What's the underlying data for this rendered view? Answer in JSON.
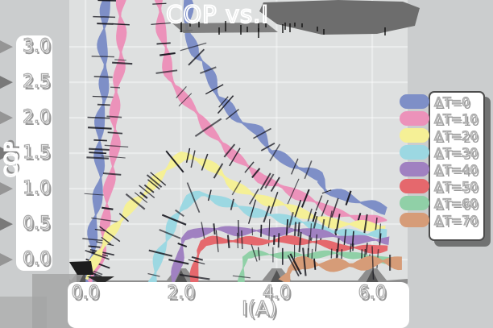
{
  "title": "COP vs.I",
  "x_axis": {
    "label": "I(A)",
    "ticks": [
      "0.0",
      "2.0",
      "4.0",
      "6.0"
    ],
    "tick_values": [
      0.0,
      2.0,
      4.0,
      6.0
    ]
  },
  "y_axis": {
    "label": "COP",
    "ticks": [
      "3.0",
      "2.5",
      "2.0",
      "1.5",
      "1.0",
      "0.5",
      "0.0"
    ],
    "tick_values": [
      3.0,
      2.5,
      2.0,
      1.5,
      1.0,
      0.5,
      0.0
    ]
  },
  "legend": {
    "entries": [
      {
        "label": "ΔT=0",
        "color": "#7e8fc7"
      },
      {
        "label": "ΔT=10",
        "color": "#ec92ba"
      },
      {
        "label": "ΔT=20",
        "color": "#f5f096"
      },
      {
        "label": "ΔT=30",
        "color": "#9cd8e2"
      },
      {
        "label": "ΔT=40",
        "color": "#a081c1"
      },
      {
        "label": "ΔT=50",
        "color": "#e5686d"
      },
      {
        "label": "ΔT=60",
        "color": "#90d0a7"
      },
      {
        "label": "ΔT=70",
        "color": "#d69c78"
      }
    ]
  },
  "style": {
    "background": "#cbcdce",
    "plot_background": "#dee0e0",
    "grid_color": "#ffffff",
    "panel_color": "#ffffff",
    "shadow_color": "#6d6d6d",
    "dash_color": "#15151d",
    "text_color": "#ffffff"
  },
  "chart_data": {
    "type": "line",
    "title": "COP vs.I",
    "xlabel": "I(A)",
    "ylabel": "COP",
    "xlim": [
      -0.34,
      6.74
    ],
    "ylim": [
      -0.34,
      3.66
    ],
    "grid": true,
    "legend_position": "right",
    "series": [
      {
        "name": "ΔT=0",
        "color": "#7e8fc7",
        "width": 13,
        "points": [
          [
            0.02,
            -0.32
          ],
          [
            0.12,
            -0.1
          ],
          [
            0.2,
            0.45
          ],
          [
            0.27,
            1.1
          ],
          [
            0.33,
            1.9
          ],
          [
            0.38,
            2.7
          ],
          [
            0.42,
            3.7
          ],
          [
            0.44,
            4.3
          ],
          [
            2.08,
            4.3
          ],
          [
            2.12,
            3.66
          ],
          [
            2.18,
            3.18
          ],
          [
            2.3,
            2.9
          ],
          [
            2.45,
            2.8
          ],
          [
            2.62,
            2.5
          ],
          [
            2.78,
            2.3
          ],
          [
            2.95,
            2.2
          ],
          [
            3.15,
            2.03
          ],
          [
            3.38,
            1.92
          ],
          [
            3.62,
            1.8
          ],
          [
            3.85,
            1.52
          ],
          [
            4.1,
            1.42
          ],
          [
            4.38,
            1.34
          ],
          [
            4.65,
            1.27
          ],
          [
            4.92,
            1.18
          ],
          [
            5.05,
            0.94
          ],
          [
            5.4,
            0.88
          ],
          [
            5.75,
            0.8
          ],
          [
            6.05,
            0.76
          ],
          [
            6.3,
            0.71
          ]
        ]
      },
      {
        "name": "ΔT=10",
        "color": "#ec92ba",
        "width": 13,
        "points": [
          [
            0.1,
            -0.32
          ],
          [
            0.25,
            -0.05
          ],
          [
            0.38,
            0.35
          ],
          [
            0.5,
            0.9
          ],
          [
            0.58,
            1.55
          ],
          [
            0.66,
            2.3
          ],
          [
            0.73,
            3.1
          ],
          [
            0.78,
            3.7
          ],
          [
            0.8,
            4.3
          ],
          [
            1.52,
            4.3
          ],
          [
            1.57,
            3.6
          ],
          [
            1.63,
            3.05
          ],
          [
            1.72,
            2.6
          ],
          [
            1.85,
            2.45
          ],
          [
            2.0,
            2.36
          ],
          [
            2.18,
            2.24
          ],
          [
            2.35,
            2.05
          ],
          [
            2.5,
            1.9
          ],
          [
            2.65,
            1.75
          ],
          [
            2.82,
            1.62
          ],
          [
            3.0,
            1.52
          ],
          [
            3.2,
            1.44
          ],
          [
            3.45,
            1.3
          ],
          [
            3.7,
            1.16
          ],
          [
            3.95,
            1.06
          ],
          [
            4.2,
            0.97
          ],
          [
            4.5,
            0.88
          ],
          [
            4.8,
            0.8
          ],
          [
            5.1,
            0.72
          ],
          [
            5.45,
            0.64
          ],
          [
            5.8,
            0.57
          ],
          [
            6.1,
            0.54
          ],
          [
            6.3,
            0.52
          ]
        ]
      },
      {
        "name": "ΔT=20",
        "color": "#f5f096",
        "width": 13,
        "points": [
          [
            0.03,
            -0.28
          ],
          [
            0.25,
            0.12
          ],
          [
            0.5,
            0.35
          ],
          [
            0.8,
            0.58
          ],
          [
            1.1,
            0.83
          ],
          [
            1.4,
            1.08
          ],
          [
            1.65,
            1.28
          ],
          [
            1.85,
            1.39
          ],
          [
            2.05,
            1.44
          ],
          [
            2.25,
            1.41
          ],
          [
            2.5,
            1.35
          ],
          [
            2.75,
            1.25
          ],
          [
            3.0,
            1.12
          ],
          [
            3.25,
            1.02
          ],
          [
            3.55,
            0.9
          ],
          [
            3.85,
            0.81
          ],
          [
            4.15,
            0.74
          ],
          [
            4.5,
            0.66
          ],
          [
            4.85,
            0.59
          ],
          [
            5.2,
            0.54
          ],
          [
            5.6,
            0.49
          ],
          [
            6.0,
            0.45
          ],
          [
            6.27,
            0.43
          ]
        ]
      },
      {
        "name": "ΔT=30",
        "color": "#9cd8e2",
        "width": 13,
        "points": [
          [
            1.42,
            -0.35
          ],
          [
            1.5,
            -0.12
          ],
          [
            1.58,
            0.1
          ],
          [
            1.68,
            0.32
          ],
          [
            1.82,
            0.55
          ],
          [
            2.0,
            0.72
          ],
          [
            2.2,
            0.84
          ],
          [
            2.42,
            0.9
          ],
          [
            2.65,
            0.86
          ],
          [
            2.9,
            0.81
          ],
          [
            3.2,
            0.76
          ],
          [
            3.5,
            0.7
          ],
          [
            3.8,
            0.63
          ],
          [
            4.1,
            0.57
          ],
          [
            4.45,
            0.51
          ],
          [
            4.8,
            0.45
          ],
          [
            5.15,
            0.41
          ],
          [
            5.5,
            0.38
          ],
          [
            5.9,
            0.35
          ],
          [
            6.3,
            0.33
          ]
        ]
      },
      {
        "name": "ΔT=40",
        "color": "#a081c1",
        "width": 12,
        "points": [
          [
            1.83,
            -0.35
          ],
          [
            1.88,
            -0.12
          ],
          [
            1.95,
            0.1
          ],
          [
            2.05,
            0.28
          ],
          [
            2.2,
            0.35
          ],
          [
            2.45,
            0.38
          ],
          [
            2.75,
            0.4
          ],
          [
            3.1,
            0.41
          ],
          [
            3.5,
            0.42
          ],
          [
            3.9,
            0.41
          ],
          [
            4.3,
            0.39
          ],
          [
            4.7,
            0.37
          ],
          [
            5.1,
            0.34
          ],
          [
            5.5,
            0.31
          ],
          [
            5.9,
            0.29
          ],
          [
            6.35,
            0.26
          ]
        ]
      },
      {
        "name": "ΔT=50",
        "color": "#e5686d",
        "width": 11,
        "points": [
          [
            2.24,
            -0.35
          ],
          [
            2.3,
            -0.08
          ],
          [
            2.38,
            0.12
          ],
          [
            2.5,
            0.21
          ],
          [
            2.7,
            0.25
          ],
          [
            3.0,
            0.27
          ],
          [
            3.35,
            0.28
          ],
          [
            3.7,
            0.28
          ],
          [
            4.05,
            0.27
          ],
          [
            4.4,
            0.25
          ],
          [
            4.75,
            0.23
          ],
          [
            5.1,
            0.21
          ],
          [
            5.45,
            0.19
          ],
          [
            5.8,
            0.17
          ],
          [
            6.1,
            0.15
          ],
          [
            6.32,
            0.14
          ]
        ]
      },
      {
        "name": "ΔT=60",
        "color": "#90d0a7",
        "width": 9,
        "points": [
          [
            3.27,
            -0.35
          ],
          [
            3.31,
            -0.12
          ],
          [
            3.37,
            0.02
          ],
          [
            3.55,
            0.06
          ],
          [
            3.85,
            0.08
          ],
          [
            4.2,
            0.08
          ],
          [
            4.55,
            0.08
          ],
          [
            4.9,
            0.07
          ],
          [
            5.25,
            0.06
          ],
          [
            5.6,
            0.05
          ],
          [
            5.95,
            0.04
          ],
          [
            6.35,
            0.02
          ]
        ]
      },
      {
        "name": "ΔT=70",
        "color": "#d69c78",
        "width": 17,
        "points": [
          [
            4.18,
            -0.32
          ],
          [
            4.3,
            -0.14
          ],
          [
            4.5,
            -0.07
          ],
          [
            4.8,
            -0.05
          ],
          [
            5.2,
            -0.06
          ],
          [
            5.6,
            -0.07
          ],
          [
            6.0,
            -0.06
          ],
          [
            6.3,
            -0.05
          ],
          [
            6.62,
            -0.05
          ]
        ]
      }
    ]
  }
}
